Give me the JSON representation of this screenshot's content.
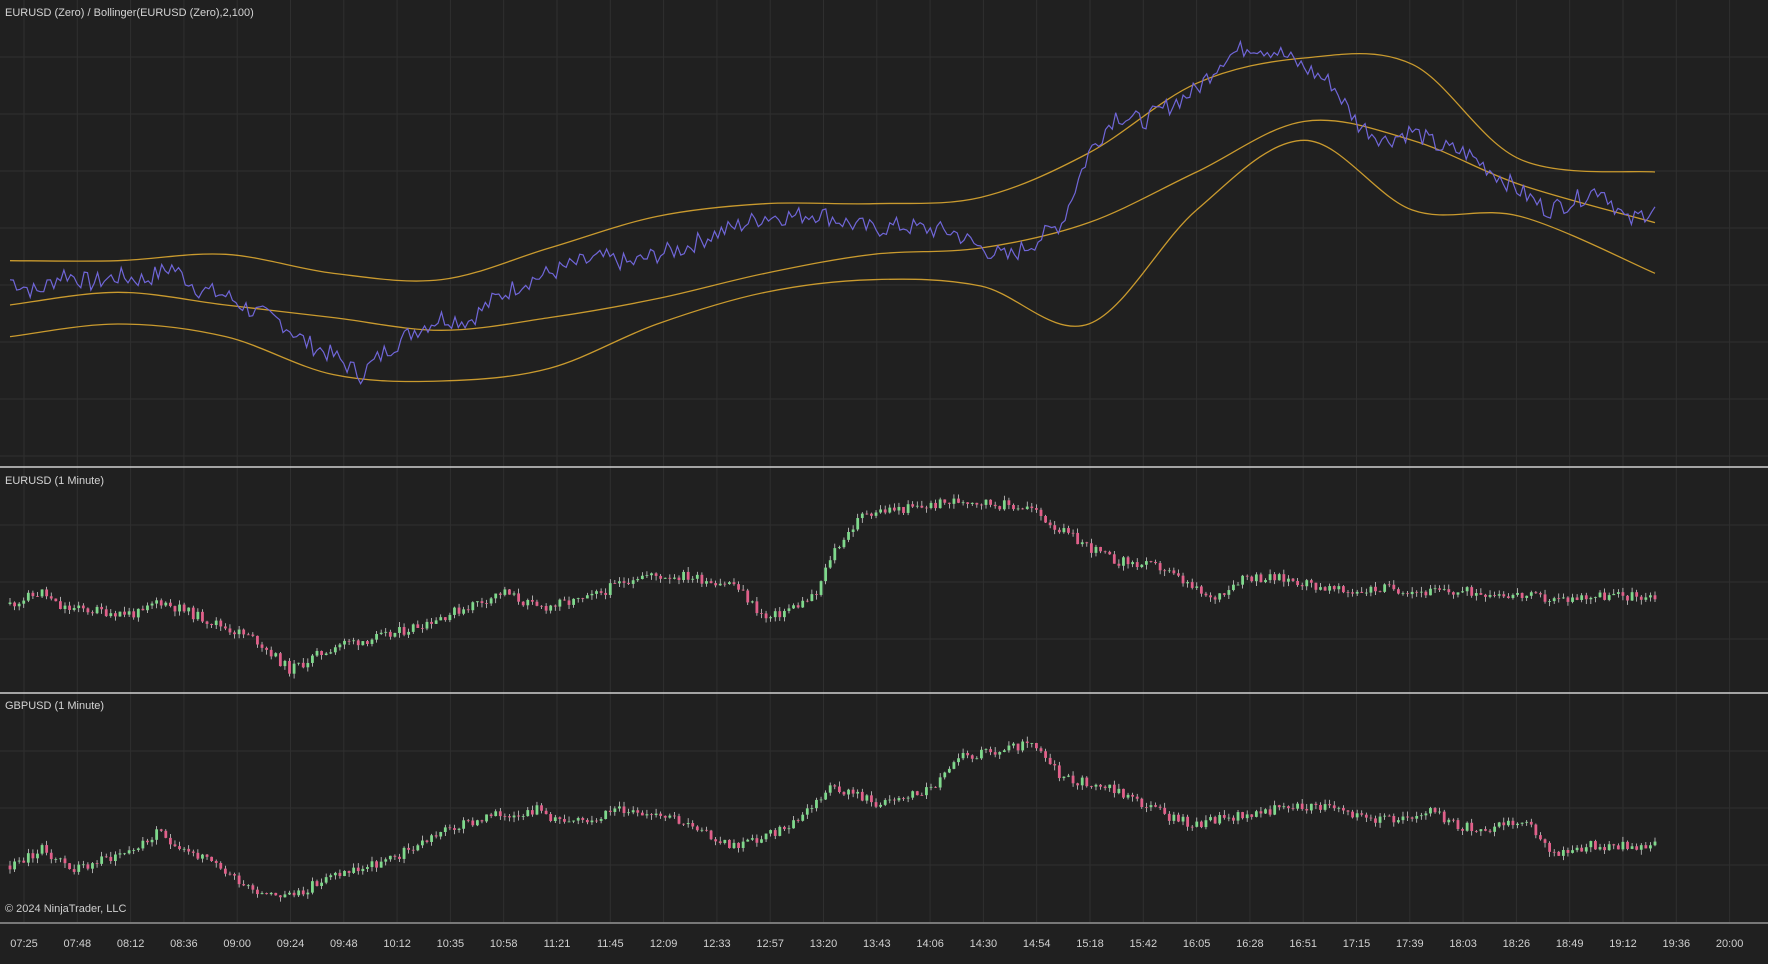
{
  "colors": {
    "background": "#202020",
    "grid": "#2f2f2f",
    "separator": "#d0d0d0",
    "price_line": "#7066d8",
    "bollinger": "#c99a2e",
    "candle_up": "#7fd88c",
    "candle_down": "#e0608a",
    "wick": "#e6e6e6"
  },
  "panels": {
    "top": {
      "title": "EURUSD (Zero) / Bollinger(EURUSD (Zero),2,100)"
    },
    "middle": {
      "title": "EURUSD (1 Minute)"
    },
    "bottom": {
      "title": "GBPUSD (1 Minute)"
    }
  },
  "footer": {
    "copyright": "© 2024 NinjaTrader, LLC"
  },
  "chart_data": {
    "type": "line",
    "x_axis": {
      "tick_labels": [
        "07:25",
        "07:48",
        "08:12",
        "08:36",
        "09:00",
        "09:24",
        "09:48",
        "10:12",
        "10:35",
        "10:58",
        "11:21",
        "11:45",
        "12:09",
        "12:33",
        "12:57",
        "13:20",
        "13:43",
        "14:06",
        "14:30",
        "14:54",
        "15:18",
        "15:42",
        "16:05",
        "16:28",
        "16:51",
        "17:15",
        "17:39",
        "18:03",
        "18:26",
        "18:49",
        "19:12",
        "19:36",
        "20:00"
      ],
      "grid": true
    },
    "panels": [
      {
        "title": "EURUSD (Zero) / Bollinger(EURUSD (Zero),2,100)",
        "type": "line",
        "series": [
          {
            "name": "EURUSD (Zero)",
            "color": "#7066d8",
            "x": [
              0,
              1,
              2,
              3,
              4,
              5,
              6,
              7,
              8,
              9,
              10,
              11,
              12,
              13,
              14,
              15,
              16,
              17,
              18,
              19,
              20,
              21,
              22,
              23,
              24,
              25,
              26,
              27,
              28,
              29,
              30,
              31,
              32,
              33,
              34,
              35,
              36,
              37,
              38,
              39,
              40,
              41,
              42,
              43,
              44,
              45,
              46,
              47,
              48,
              49,
              50,
              51,
              52,
              53,
              54,
              55,
              56,
              57,
              58,
              59,
              60,
              61
            ],
            "values": [
              38,
              34,
              40,
              37,
              39,
              38,
              42,
              35,
              33,
              28,
              25,
              18,
              14,
              8,
              16,
              22,
              26,
              25,
              32,
              37,
              40,
              43,
              45,
              43,
              46,
              48,
              52,
              55,
              58,
              58,
              59,
              56,
              54,
              55,
              54,
              53,
              48,
              45,
              50,
              56,
              78,
              90,
              88,
              93,
              98,
              108,
              112,
              110,
              105,
              100,
              87,
              82,
              85,
              80,
              78,
              72,
              66,
              60,
              63,
              67,
              56,
              61
            ],
            "note": "relative scale, no axis values printed"
          },
          {
            "name": "Bollinger upper",
            "color": "#c99a2e",
            "x": [
              0,
              4,
              8,
              12,
              16,
              20,
              24,
              28,
              32,
              36,
              40,
              44,
              48,
              52,
              56,
              61
            ],
            "values": [
              44,
              44,
              46,
              40,
              38,
              48,
              58,
              62,
              62,
              64,
              78,
              100,
              108,
              106,
              76,
              72
            ]
          },
          {
            "name": "Bollinger middle",
            "color": "#c99a2e",
            "x": [
              0,
              4,
              8,
              12,
              16,
              20,
              24,
              28,
              32,
              36,
              40,
              44,
              48,
              52,
              56,
              61
            ],
            "values": [
              30,
              34,
              30,
              26,
              22,
              26,
              32,
              40,
              46,
              48,
              56,
              72,
              88,
              82,
              68,
              56
            ]
          },
          {
            "name": "Bollinger lower",
            "color": "#c99a2e",
            "x": [
              0,
              4,
              8,
              12,
              16,
              20,
              24,
              28,
              32,
              36,
              40,
              44,
              48,
              52,
              56,
              61
            ],
            "values": [
              20,
              24,
              20,
              8,
              6,
              10,
              24,
              34,
              38,
              36,
              24,
              60,
              82,
              60,
              58,
              40
            ]
          }
        ]
      },
      {
        "title": "EURUSD (1 Minute)",
        "type": "candlestick",
        "note": "relative price path, no axis values printed"
      },
      {
        "title": "GBPUSD (1 Minute)",
        "type": "candlestick",
        "note": "relative price path, no axis values printed"
      }
    ]
  }
}
